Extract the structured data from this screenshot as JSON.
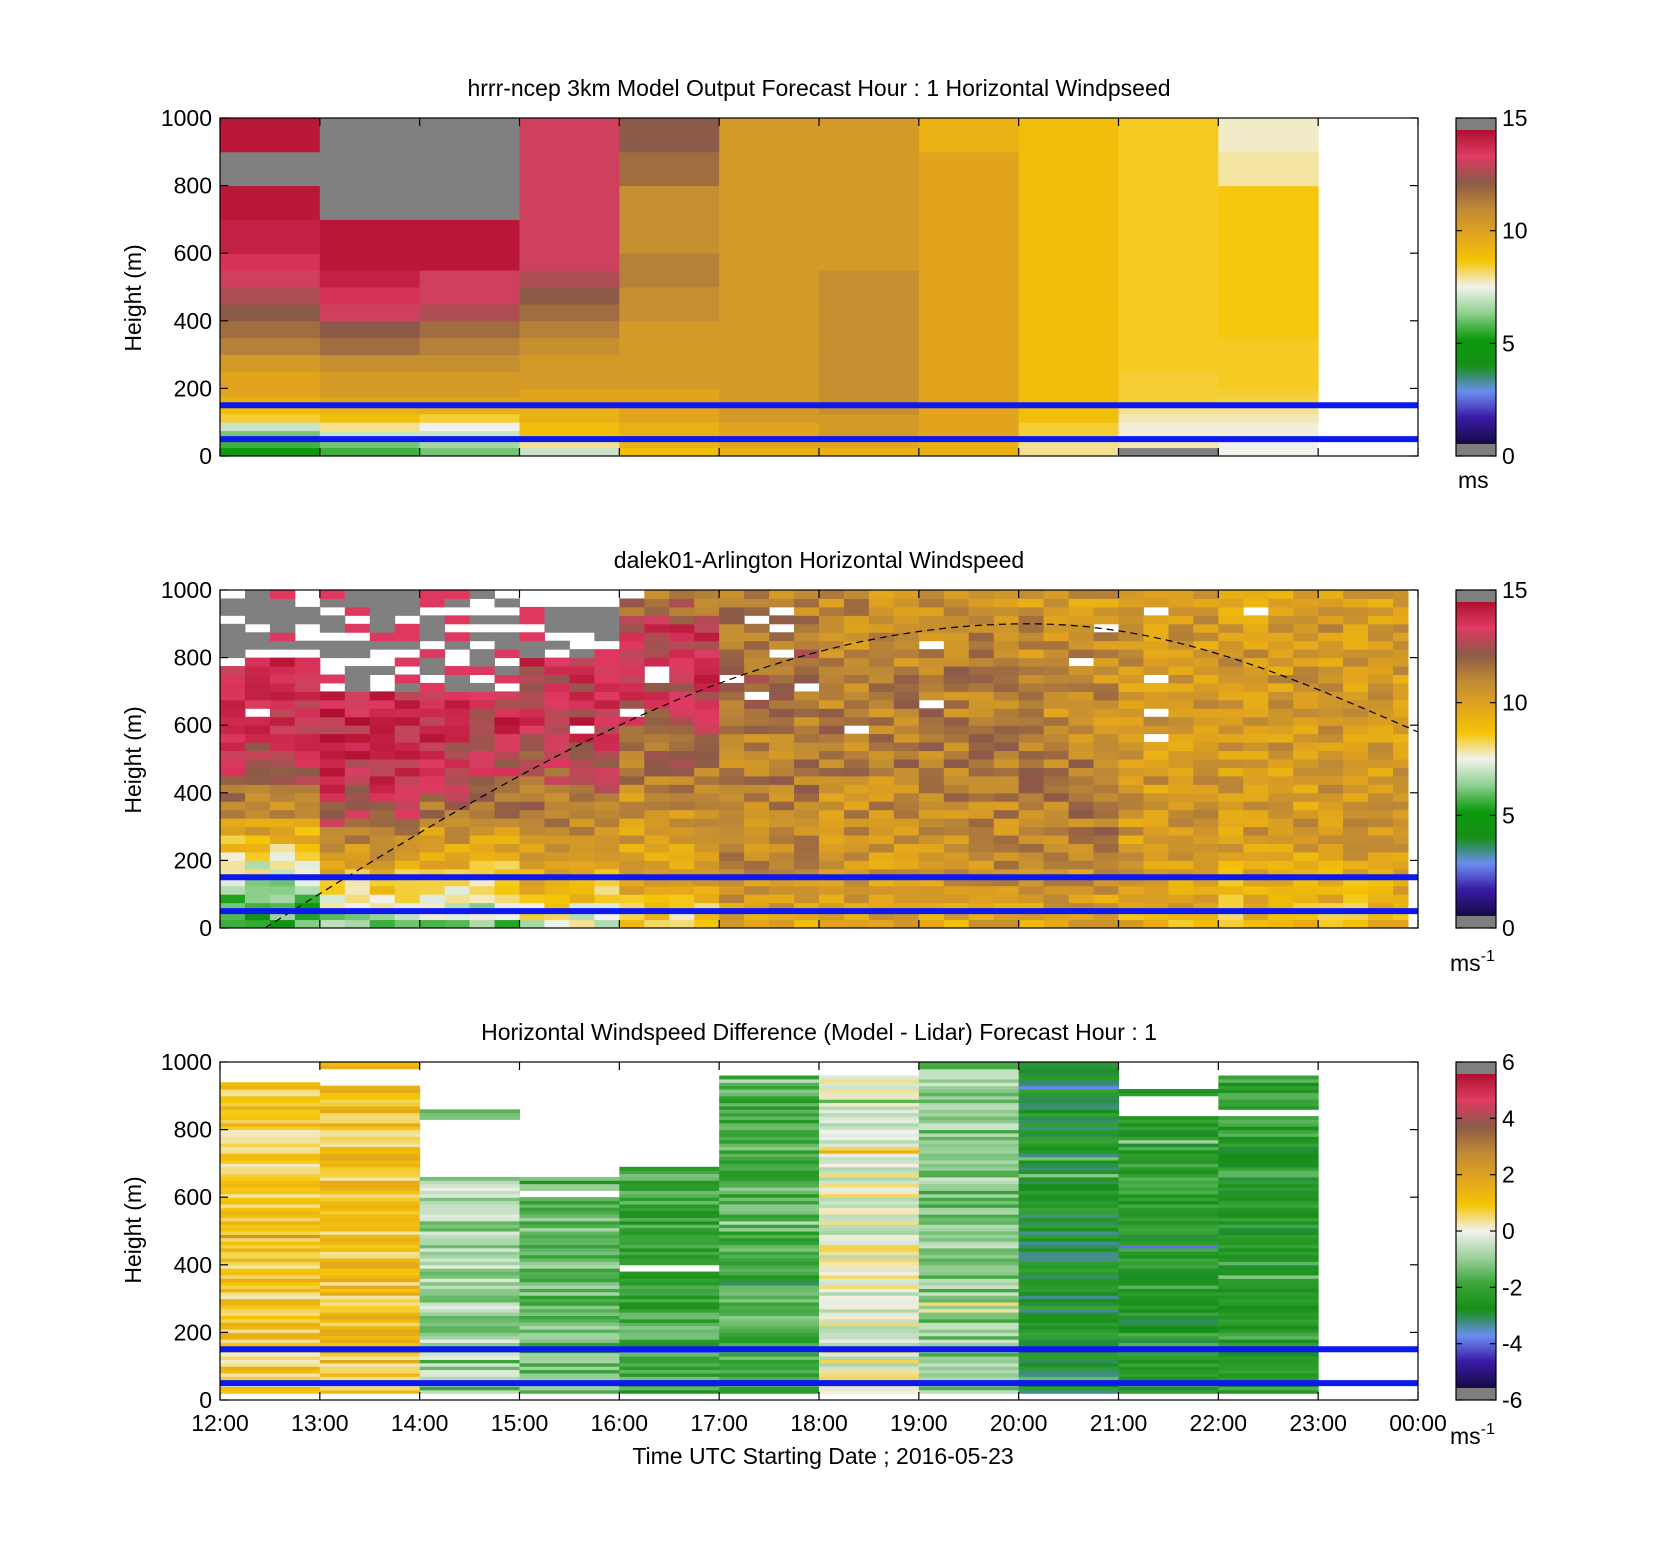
{
  "colors": {
    "reference_lines": "#0b19f0",
    "missing_data": "#808080",
    "axis": "#000000",
    "speed_colormap": [
      "#7f7f7f",
      "#160a45",
      "#3a1aa5",
      "#6a8ef0",
      "#168f16",
      "#0c9a0c",
      "#8fd08f",
      "#f2f2ec",
      "#f5c506",
      "#e2a41d",
      "#bf8a35",
      "#8c5a48",
      "#e03a63",
      "#b01030",
      "#7f7f7f"
    ],
    "diff_colormap": [
      "#7f7f7f",
      "#160a45",
      "#3a1aa5",
      "#6a8ef0",
      "#168f16",
      "#3aa53a",
      "#9fd29f",
      "#f2f2ec",
      "#f5c506",
      "#e2a41d",
      "#bf8a35",
      "#8c5a48",
      "#e03a63",
      "#b01030",
      "#7f7f7f"
    ]
  },
  "time_ticks": [
    "12:00",
    "13:00",
    "14:00",
    "15:00",
    "16:00",
    "17:00",
    "18:00",
    "19:00",
    "20:00",
    "21:00",
    "22:00",
    "23:00",
    "00:00"
  ],
  "xlabel": "Time UTC  Starting Date ; 2016-05-23",
  "chart_data": [
    {
      "type": "heatmap",
      "name": "model",
      "title": "hrrr-ncep 3km Model Output   Forecast Hour : 1 Horizontal Windpseed",
      "ylabel": "Height (m)",
      "ylim": [
        0,
        1000
      ],
      "yticks": [
        "0",
        "200",
        "400",
        "600",
        "800",
        "1000"
      ],
      "x_range_hours": [
        12,
        24
      ],
      "x_bins_hours": [
        12,
        13,
        14,
        15,
        16,
        17,
        18,
        19,
        20,
        21,
        22,
        23
      ],
      "y_bins_m": [
        0,
        25,
        50,
        75,
        100,
        125,
        150,
        175,
        200,
        250,
        300,
        350,
        400,
        450,
        500,
        550,
        600,
        700,
        800,
        900
      ],
      "reference_lines_m": [
        50,
        150
      ],
      "colorbar": {
        "range": [
          0,
          15
        ],
        "ticks": [
          "0",
          "5",
          "10",
          "15"
        ],
        "unit_label": "ms"
      },
      "missing_value": -99,
      "z": [
        [
          5.0,
          5.5,
          6.0,
          7.0,
          8.5,
          9.0,
          9.5,
          10.0,
          10.0,
          10.5,
          11.5,
          12.0,
          12.5,
          13.0,
          13.5,
          14.0,
          14.5,
          14.8,
          -99,
          14.8
        ],
        [
          5.5,
          6.0,
          7.0,
          8.0,
          9.0,
          9.5,
          10.0,
          10.5,
          10.5,
          11.0,
          12.0,
          12.5,
          13.5,
          14.0,
          14.5,
          14.8,
          14.8,
          -99,
          -99,
          -99
        ],
        [
          6.0,
          6.5,
          7.0,
          7.5,
          8.5,
          9.5,
          10.0,
          10.5,
          10.5,
          11.0,
          11.5,
          12.0,
          13.0,
          13.5,
          13.5,
          14.8,
          14.8,
          -99,
          -99,
          -99
        ],
        [
          7.0,
          8.0,
          9.0,
          9.0,
          9.5,
          9.5,
          10.0,
          10.0,
          10.5,
          10.5,
          11.0,
          11.5,
          12.0,
          12.5,
          13.0,
          13.5,
          13.5,
          13.5,
          13.5,
          13.5
        ],
        [
          9.0,
          9.5,
          9.5,
          9.5,
          10.0,
          10.0,
          10.0,
          10.0,
          10.5,
          10.5,
          10.5,
          10.5,
          11.0,
          11.0,
          11.5,
          11.5,
          11.0,
          11.0,
          12.0,
          12.5
        ],
        [
          9.5,
          10.0,
          10.0,
          10.0,
          10.5,
          10.5,
          10.5,
          10.5,
          10.5,
          10.5,
          10.5,
          10.5,
          10.5,
          10.5,
          10.5,
          10.5,
          10.5,
          10.5,
          10.5,
          10.5
        ],
        [
          9.5,
          10.0,
          10.5,
          10.5,
          10.5,
          11.0,
          11.0,
          11.0,
          11.0,
          11.0,
          11.0,
          11.0,
          11.0,
          11.0,
          11.0,
          10.5,
          10.5,
          10.5,
          10.5,
          10.5
        ],
        [
          9.5,
          9.5,
          10.0,
          10.0,
          10.0,
          10.0,
          10.0,
          10.0,
          10.0,
          10.0,
          10.0,
          10.0,
          10.0,
          10.0,
          10.0,
          10.0,
          10.0,
          10.0,
          10.0,
          9.5
        ],
        [
          8.0,
          8.0,
          8.5,
          8.5,
          9.0,
          9.0,
          9.0,
          9.0,
          9.0,
          9.0,
          9.0,
          9.0,
          9.0,
          9.0,
          9.0,
          9.0,
          9.0,
          9.0,
          9.0,
          9.0
        ],
        [
          -99,
          7.8,
          7.6,
          7.6,
          7.8,
          8.0,
          8.5,
          8.5,
          8.5,
          8.6,
          8.6,
          8.6,
          8.6,
          8.6,
          8.6,
          8.6,
          8.6,
          8.6,
          8.6,
          8.6
        ],
        [
          7.5,
          7.5,
          7.6,
          7.6,
          7.8,
          8.0,
          8.4,
          8.5,
          8.6,
          8.6,
          8.6,
          8.7,
          8.7,
          8.7,
          8.7,
          8.7,
          8.7,
          8.7,
          7.9,
          7.7
        ],
        [
          null,
          null,
          null,
          null,
          null,
          null,
          null,
          null,
          null,
          null,
          null,
          null,
          null,
          null,
          null,
          null,
          null,
          null,
          null,
          null
        ]
      ]
    },
    {
      "type": "heatmap",
      "name": "lidar",
      "title": "dalek01-Arlington  Horizontal Windspeed",
      "ylabel": "Height (m)",
      "ylim": [
        0,
        1000
      ],
      "yticks": [
        "0",
        "200",
        "400",
        "600",
        "800",
        "1000"
      ],
      "x_range_hours": [
        12,
        24
      ],
      "x_bin_width_minutes": 15,
      "x_end_hours": 23.9,
      "y_bin_width_m": 25,
      "reference_lines_m": [
        50,
        150
      ],
      "colorbar": {
        "range": [
          0,
          15
        ],
        "ticks": [
          "0",
          "5",
          "10",
          "15"
        ],
        "unit_label": "ms",
        "unit_exponent": "-1"
      },
      "hourly_profile_m_s": [
        [
          5,
          6,
          8,
          10,
          12,
          13.5,
          14,
          14.2,
          13.8,
          -99,
          -99,
          -99
        ],
        [
          6,
          8,
          10,
          12.5,
          13.5,
          14,
          14.2,
          13.8,
          -99,
          -99,
          -99,
          -99
        ],
        [
          6,
          8,
          9.5,
          11,
          12.5,
          13.5,
          14,
          13.5,
          -99,
          -99,
          -99,
          -99
        ],
        [
          7,
          9,
          10,
          11,
          12,
          13,
          14,
          13.5,
          14,
          -99,
          -99,
          null
        ],
        [
          8,
          9.5,
          10,
          10.5,
          11,
          12,
          13,
          13.5,
          14,
          13.5,
          12,
          12
        ],
        [
          10,
          10.5,
          11,
          11,
          11.5,
          11.5,
          11.5,
          12,
          12,
          11.5,
          11.5,
          11.5
        ],
        [
          10,
          10.5,
          10.5,
          11,
          11,
          11.5,
          11.5,
          11.5,
          11,
          11,
          11,
          11
        ],
        [
          10,
          10.5,
          11,
          11,
          11.5,
          11.5,
          11.5,
          11.5,
          11.5,
          11,
          11,
          10.5
        ],
        [
          10,
          10.5,
          11,
          11.5,
          11.5,
          11.5,
          11,
          11,
          11,
          11,
          10.5,
          10.5
        ],
        [
          9.5,
          10,
          10.5,
          10.5,
          10.5,
          10.5,
          10.5,
          10.5,
          10.5,
          10.5,
          10.5,
          10
        ],
        [
          9,
          9.5,
          10,
          10.5,
          10.5,
          10.5,
          10.5,
          10.5,
          10.5,
          10.5,
          10,
          10
        ],
        [
          9,
          9.5,
          10,
          10.5,
          10.5,
          10.5,
          10.5,
          10.5,
          10.5,
          10.5,
          10.5,
          10
        ]
      ],
      "profile_heights_m": [
        0,
        100,
        200,
        300,
        400,
        500,
        600,
        700,
        800,
        900,
        950,
        1000
      ],
      "dashed_curve": {
        "peak_time_hours": 20.1,
        "peak_height_m": 900,
        "start_time_hours": 12.45,
        "start_height_m": 0,
        "end_time_hours": 24,
        "end_height_m": 580
      }
    },
    {
      "type": "heatmap",
      "name": "difference",
      "title": "Horizontal Windspeed Difference (Model - Lidar) Forecast Hour : 1",
      "ylabel": "Height (m)",
      "ylim": [
        0,
        1000
      ],
      "yticks": [
        "0",
        "200",
        "400",
        "600",
        "800",
        "1000"
      ],
      "x_range_hours": [
        12,
        24
      ],
      "x_bins_hours": [
        12,
        13,
        14,
        15,
        16,
        17,
        18,
        19,
        20,
        21,
        22,
        23
      ],
      "y_bin_width_m": 10,
      "reference_lines_m": [
        50,
        150
      ],
      "colorbar": {
        "range": [
          -6,
          6
        ],
        "ticks": [
          "-6",
          "-4",
          "-2",
          "0",
          "2",
          "4",
          "6"
        ],
        "unit_label": "ms",
        "unit_exponent": "-1"
      },
      "hourly_top_m": [
        940,
        1000,
        860,
        660,
        690,
        960,
        960,
        1000,
        1000,
        1000,
        960,
        null
      ],
      "hourly_mean_diff": [
        0.9,
        1.1,
        -0.9,
        -1.6,
        -2.1,
        -1.9,
        -0.1,
        -1.2,
        -2.8,
        -2.5,
        -2.4,
        null
      ],
      "gap_bands_m": [
        [],
        [
          [
            930,
            980
          ]
        ],
        [
          [
            660,
            830
          ],
          [
            870,
            1000
          ]
        ],
        [
          [
            600,
            620
          ],
          [
            660,
            1000
          ]
        ],
        [
          [
            380,
            400
          ],
          [
            690,
            1000
          ]
        ],
        [],
        [],
        [],
        [],
        [
          [
            840,
            900
          ],
          [
            920,
            1000
          ]
        ],
        [
          [
            840,
            860
          ]
        ],
        []
      ]
    }
  ]
}
